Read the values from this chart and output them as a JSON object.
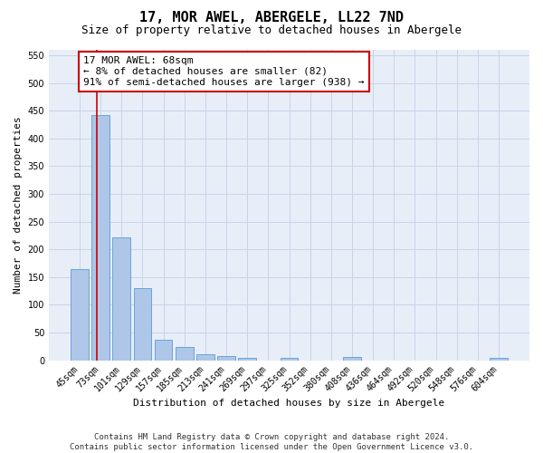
{
  "title": "17, MOR AWEL, ABERGELE, LL22 7ND",
  "subtitle": "Size of property relative to detached houses in Abergele",
  "xlabel": "Distribution of detached houses by size in Abergele",
  "ylabel": "Number of detached properties",
  "categories": [
    "45sqm",
    "73sqm",
    "101sqm",
    "129sqm",
    "157sqm",
    "185sqm",
    "213sqm",
    "241sqm",
    "269sqm",
    "297sqm",
    "325sqm",
    "352sqm",
    "380sqm",
    "408sqm",
    "436sqm",
    "464sqm",
    "492sqm",
    "520sqm",
    "548sqm",
    "576sqm",
    "604sqm"
  ],
  "values": [
    165,
    443,
    222,
    130,
    37,
    24,
    10,
    7,
    5,
    0,
    5,
    0,
    0,
    6,
    0,
    0,
    0,
    0,
    0,
    0,
    5
  ],
  "bar_color": "#aec6e8",
  "bar_edge_color": "#5b9bd5",
  "grid_color": "#c8d4e8",
  "background_color": "#e8eef8",
  "annotation_line_color": "#cc0000",
  "annotation_box_color": "#ffffff",
  "annotation_box_edge": "#cc0000",
  "annotation_line1": "17 MOR AWEL: 68sqm",
  "annotation_line2": "← 8% of detached houses are smaller (82)",
  "annotation_line3": "91% of semi-detached houses are larger (938) →",
  "ylim": [
    0,
    560
  ],
  "yticks": [
    0,
    50,
    100,
    150,
    200,
    250,
    300,
    350,
    400,
    450,
    500,
    550
  ],
  "footnote": "Contains HM Land Registry data © Crown copyright and database right 2024.\nContains public sector information licensed under the Open Government Licence v3.0.",
  "title_fontsize": 11,
  "subtitle_fontsize": 9,
  "axis_label_fontsize": 8,
  "tick_fontsize": 7,
  "annotation_fontsize": 8,
  "footnote_fontsize": 6.5
}
